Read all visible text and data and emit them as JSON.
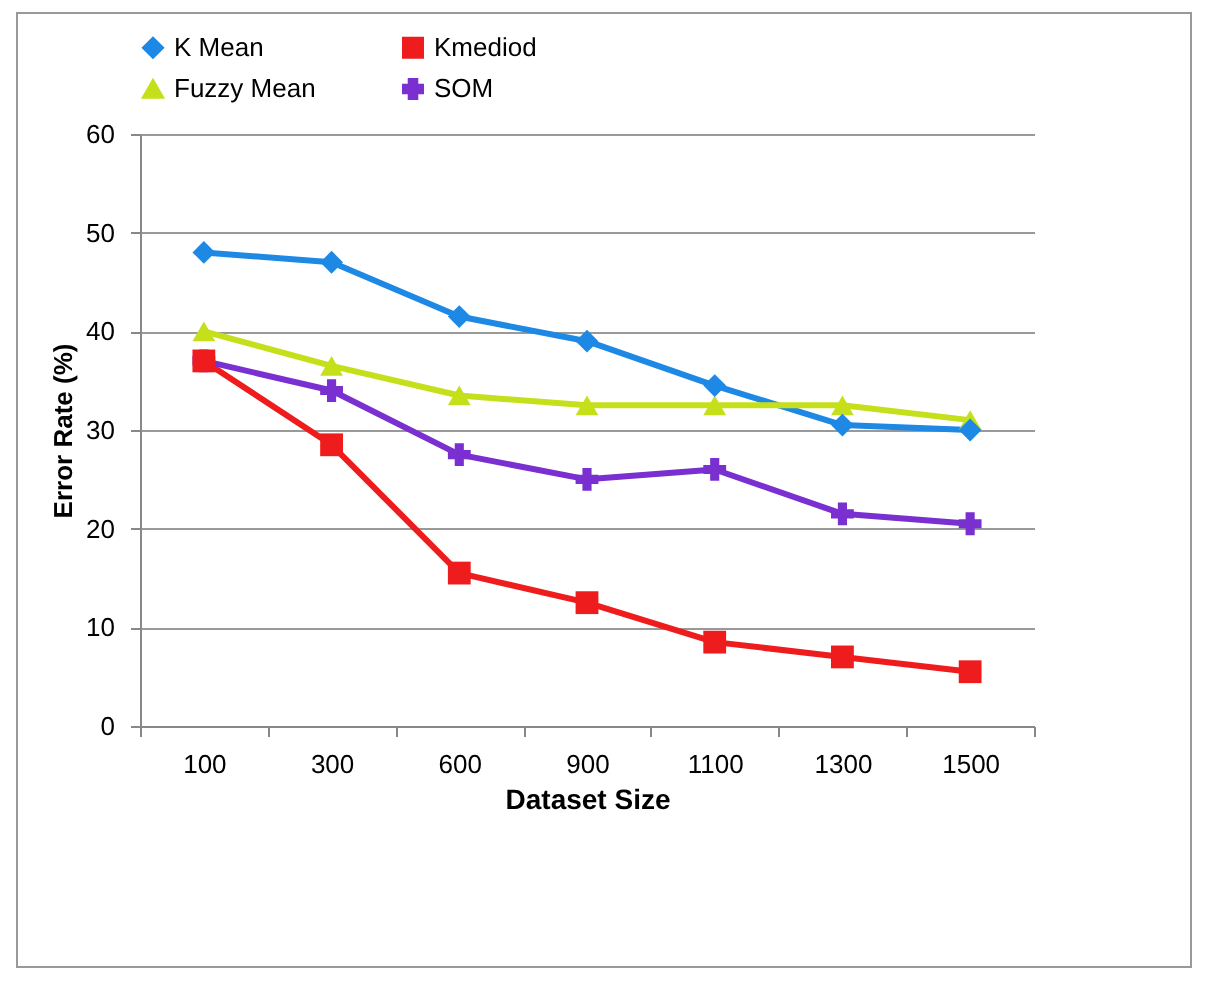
{
  "chart_data": {
    "type": "line",
    "xlabel": "Dataset Size",
    "ylabel": "Error Rate (%)",
    "categories": [
      "100",
      "300",
      "600",
      "900",
      "1100",
      "1300",
      "1500"
    ],
    "series": [
      {
        "name": "K Mean",
        "color": "#1e88e5",
        "marker": "diamond",
        "values": [
          48,
          47,
          41.5,
          39,
          34.5,
          30.5,
          30
        ]
      },
      {
        "name": "Kmediod",
        "color": "#ee1c1c",
        "marker": "square",
        "values": [
          37,
          28.5,
          15.5,
          12.5,
          8.5,
          7,
          5.5
        ]
      },
      {
        "name": "Fuzzy Mean",
        "color": "#c5e01a",
        "marker": "triangle",
        "values": [
          40,
          36.5,
          33.5,
          32.5,
          32.5,
          32.5,
          31
        ]
      },
      {
        "name": "SOM",
        "color": "#7a2fd0",
        "marker": "cross",
        "values": [
          37,
          34,
          27.5,
          25,
          26,
          21.5,
          20.5
        ]
      }
    ],
    "ylim": [
      0,
      60
    ],
    "yticks": [
      0,
      10,
      20,
      30,
      40,
      50,
      60
    ],
    "grid": "y",
    "legend": "top",
    "line_style": "solid"
  }
}
